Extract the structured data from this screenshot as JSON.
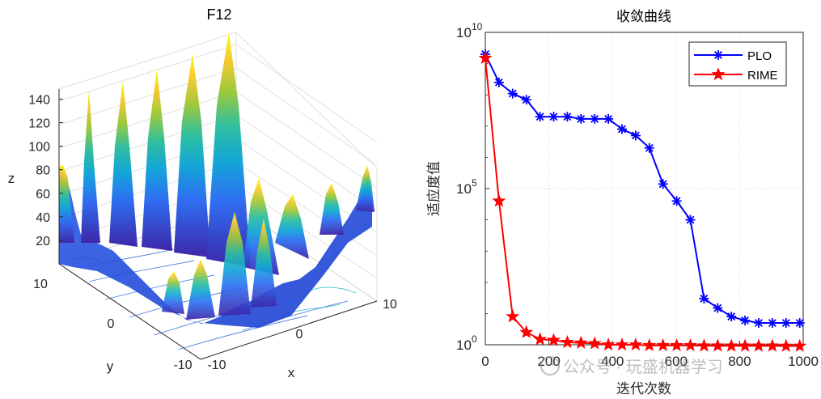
{
  "chart_data": [
    {
      "type": "surface3d",
      "title": "F12",
      "xlabel": "x",
      "ylabel": "y",
      "zlabel": "z",
      "xlim": [
        -10,
        10
      ],
      "ylim": [
        -10,
        10
      ],
      "zlim": [
        0,
        150
      ],
      "x_ticks": [
        "-10",
        "0",
        "10"
      ],
      "y_ticks": [
        "10",
        "0",
        "-10"
      ],
      "z_ticks": [
        "20",
        "40",
        "60",
        "80",
        "100",
        "120",
        "140"
      ],
      "colormap": [
        "#3e26a8",
        "#2f6ef2",
        "#13a6d7",
        "#2fbf9f",
        "#9fc93b",
        "#f5c931",
        "#f9fb15"
      ]
    },
    {
      "type": "line",
      "title": "收敛曲线",
      "xlabel": "迭代次数",
      "ylabel": "适应度值",
      "yscale": "log",
      "xlim": [
        0,
        1000
      ],
      "ylim": [
        1,
        10000000000
      ],
      "x_ticks": [
        "0",
        "200",
        "400",
        "600",
        "800",
        "1000"
      ],
      "y_ticks": [
        {
          "base": "10",
          "exp": "10"
        },
        {
          "base": "10",
          "exp": "5"
        },
        {
          "base": "10",
          "exp": "0"
        }
      ],
      "grid": true,
      "legend_position": "top-right",
      "x": [
        0,
        43,
        86,
        129,
        172,
        215,
        258,
        301,
        344,
        387,
        430,
        473,
        516,
        559,
        602,
        645,
        688,
        731,
        774,
        817,
        860,
        903,
        946,
        989
      ],
      "series": [
        {
          "name": "PLO",
          "color": "#0000ff",
          "marker": "asterisk",
          "values": [
            2000000000,
            250000000,
            110000000,
            70000000,
            20000000,
            20000000,
            20000000,
            17000000,
            17000000,
            17000000,
            8000000,
            5000000,
            2000000,
            140000,
            40000,
            10000,
            30,
            15,
            8,
            6,
            5,
            5,
            5,
            5
          ]
        },
        {
          "name": "RIME",
          "color": "#ff0000",
          "marker": "pentagram",
          "values": [
            1500000000,
            40000,
            8,
            2.5,
            1.5,
            1.4,
            1.2,
            1.15,
            1.1,
            1.0,
            1.0,
            1.0,
            0.95,
            0.95,
            0.95,
            0.95,
            0.93,
            0.93,
            0.92,
            0.92,
            0.92,
            0.92,
            0.91,
            0.91
          ]
        }
      ]
    }
  ],
  "watermark": {
    "text": "公众号 · 玩盛机器学习"
  }
}
